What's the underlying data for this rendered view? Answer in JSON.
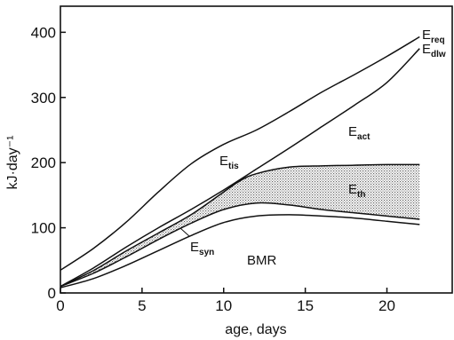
{
  "chart_data": {
    "type": "line",
    "xlabel": "age, days",
    "ylabel": "kJ·day⁻¹",
    "xlim": [
      0,
      24
    ],
    "ylim": [
      0,
      440
    ],
    "xticks": [
      "0",
      "5",
      "10",
      "15",
      "20"
    ],
    "yticks": [
      "0",
      "100",
      "200",
      "300",
      "400"
    ],
    "grid": false,
    "series": [
      {
        "name": "E_req",
        "x": [
          0,
          2,
          4,
          6,
          8,
          10,
          12,
          14,
          16,
          18,
          20,
          22
        ],
        "y": [
          35,
          68,
          108,
          155,
          198,
          228,
          250,
          278,
          308,
          335,
          363,
          393
        ]
      },
      {
        "name": "E_dlw",
        "x": [
          0,
          2,
          4,
          6,
          8,
          10,
          12,
          14,
          16,
          18,
          20,
          22
        ],
        "y": [
          10,
          38,
          70,
          100,
          128,
          158,
          190,
          222,
          255,
          288,
          323,
          375
        ]
      },
      {
        "name": "E_th",
        "x": [
          0,
          2,
          4,
          6,
          8,
          10,
          11,
          12,
          14,
          16,
          18,
          20,
          22
        ],
        "y": [
          10,
          34,
          64,
          92,
          120,
          155,
          172,
          183,
          193,
          195,
          196,
          197,
          197
        ]
      },
      {
        "name": "E_syn",
        "x": [
          0,
          2,
          4,
          6,
          8,
          10,
          12,
          14,
          16,
          18,
          20,
          22
        ],
        "y": [
          10,
          30,
          55,
          82,
          107,
          128,
          138,
          135,
          128,
          123,
          118,
          113
        ]
      },
      {
        "name": "BMR",
        "x": [
          0,
          2,
          4,
          6,
          8,
          10,
          12,
          14,
          16,
          18,
          20,
          22
        ],
        "y": [
          8,
          22,
          42,
          65,
          88,
          108,
          118,
          120,
          118,
          115,
          110,
          105
        ]
      }
    ],
    "annotations": [
      {
        "base": "E",
        "sub": "req"
      },
      {
        "base": "E",
        "sub": "dlw"
      },
      {
        "base": "E",
        "sub": "tis"
      },
      {
        "base": "E",
        "sub": "act"
      },
      {
        "base": "E",
        "sub": "th"
      },
      {
        "base": "E",
        "sub": "syn"
      },
      {
        "base": "BMR",
        "sub": ""
      }
    ]
  }
}
